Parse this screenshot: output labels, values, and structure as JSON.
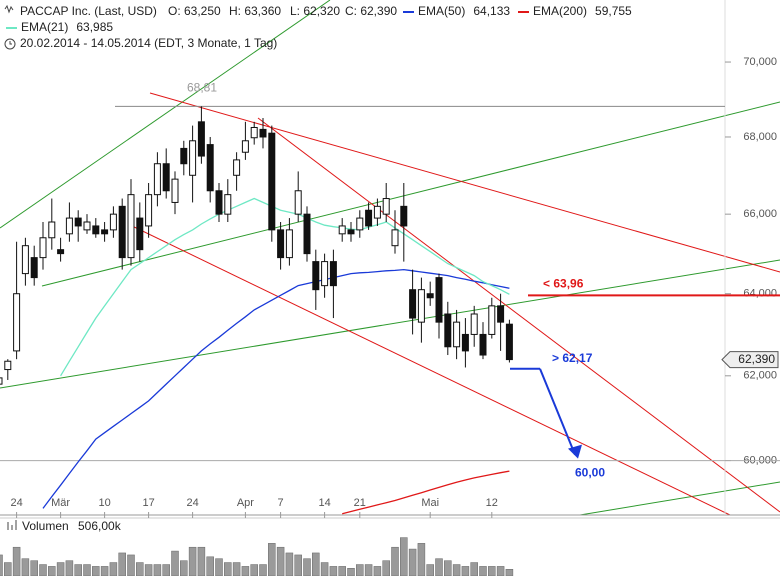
{
  "chart_data": {
    "type": "candlestick",
    "title": "PACCAP Inc. (Last, USD)",
    "ohlc_labels": [
      "O: 63,250",
      "H: 63,360",
      "L: 62,320",
      "C: 62,390"
    ],
    "subtitle": "20.02.2014 - 14.05.2014 (EDT, 3 Monate, 1 Tag)",
    "categories": [
      null,
      null,
      "24",
      null,
      null,
      null,
      null,
      "Mär",
      null,
      null,
      null,
      null,
      "10",
      null,
      null,
      null,
      null,
      "17",
      null,
      null,
      null,
      null,
      "24",
      null,
      null,
      null,
      null,
      null,
      "Apr",
      null,
      null,
      null,
      "7",
      null,
      null,
      null,
      null,
      "14",
      null,
      null,
      null,
      "21",
      null,
      null,
      null,
      null,
      null,
      null,
      null,
      "Mai",
      null,
      null,
      null,
      null,
      null,
      null,
      "12",
      null,
      null
    ],
    "open": [
      61.8,
      62.15,
      62.6,
      64.5,
      64.9,
      64.9,
      65.4,
      65.1,
      65.5,
      65.9,
      65.6,
      65.7,
      65.6,
      65.6,
      66.2,
      64.9,
      65.9,
      65.7,
      66.5,
      67.3,
      66.3,
      67.7,
      67.0,
      68.4,
      67.8,
      66.6,
      66.0,
      67.0,
      67.6,
      67.98,
      68.2,
      68.1,
      65.6,
      64.9,
      66.0,
      66.0,
      64.8,
      64.2,
      64.8,
      65.5,
      65.6,
      65.6,
      66.1,
      65.9,
      66.0,
      65.2,
      66.2,
      64.1,
      63.3,
      64.0,
      64.4,
      63.5,
      62.7,
      63.0,
      63.0,
      63.0,
      63.0,
      63.7,
      63.25
    ],
    "high": [
      62.1,
      62.4,
      65.3,
      65.4,
      65.2,
      65.8,
      66.4,
      65.4,
      66.3,
      66.1,
      66.0,
      65.9,
      65.8,
      66.2,
      66.4,
      66.9,
      66.3,
      66.8,
      67.6,
      67.7,
      67.1,
      67.9,
      68.3,
      68.81,
      68.0,
      66.8,
      66.9,
      67.6,
      68.4,
      68.4,
      68.5,
      68.3,
      65.8,
      65.9,
      67.1,
      66.2,
      65.1,
      65.0,
      65.1,
      65.9,
      65.8,
      66.1,
      66.3,
      66.4,
      66.8,
      66.1,
      66.8,
      64.6,
      64.4,
      64.3,
      64.5,
      63.8,
      63.6,
      63.4,
      63.7,
      63.3,
      63.9,
      64.0,
      63.36
    ],
    "low": [
      61.5,
      61.9,
      62.4,
      64.2,
      64.2,
      64.6,
      65.1,
      64.8,
      65.3,
      65.3,
      65.5,
      65.4,
      65.3,
      65.4,
      64.6,
      64.7,
      64.8,
      65.4,
      66.2,
      66.4,
      66.0,
      67.0,
      66.3,
      67.3,
      66.3,
      65.8,
      65.8,
      66.6,
      67.4,
      67.8,
      67.7,
      65.3,
      64.6,
      64.7,
      65.8,
      64.8,
      63.6,
      63.9,
      63.4,
      65.3,
      65.3,
      65.4,
      65.6,
      65.7,
      65.8,
      65.0,
      64.8,
      63.0,
      62.8,
      63.7,
      62.9,
      62.5,
      62.4,
      62.2,
      62.7,
      62.4,
      62.9,
      62.6,
      62.32
    ],
    "close": [
      61.95,
      62.35,
      64.0,
      65.2,
      64.4,
      65.4,
      65.8,
      65.0,
      65.9,
      65.7,
      65.8,
      65.5,
      65.5,
      66.0,
      64.9,
      66.5,
      65.1,
      66.5,
      67.3,
      66.6,
      66.9,
      67.3,
      67.9,
      67.5,
      66.6,
      66.0,
      66.5,
      67.4,
      67.9,
      68.25,
      68.0,
      65.6,
      64.9,
      65.6,
      66.6,
      65.0,
      64.1,
      64.8,
      64.2,
      65.7,
      65.5,
      65.9,
      65.7,
      66.2,
      66.4,
      65.6,
      65.7,
      63.4,
      64.1,
      63.9,
      63.3,
      62.7,
      63.3,
      62.6,
      63.5,
      62.5,
      63.7,
      63.3,
      62.39
    ],
    "series": [
      {
        "name": "EMA(50)",
        "color": "#1a3ad8",
        "last_label": "64,133",
        "values": [
          null,
          null,
          null,
          null,
          null,
          58.9,
          59.17,
          59.43,
          59.7,
          59.97,
          60.23,
          60.5,
          60.65,
          60.8,
          60.95,
          61.1,
          61.25,
          61.4,
          61.6,
          61.8,
          62.0,
          62.2,
          62.4,
          62.6,
          62.77,
          62.93,
          63.1,
          63.27,
          63.43,
          63.6,
          63.72,
          63.84,
          63.96,
          64.08,
          64.2,
          64.25,
          64.3,
          64.35,
          64.4,
          64.45,
          64.5,
          64.52,
          64.53,
          64.55,
          64.57,
          64.58,
          64.6,
          64.57,
          64.54,
          64.51,
          64.48,
          64.45,
          64.4,
          64.36,
          64.31,
          64.27,
          64.22,
          64.18,
          64.133
        ]
      },
      {
        "name": "EMA(200)",
        "color": "#e01818",
        "last_label": "59,755",
        "values": [
          null,
          null,
          null,
          null,
          null,
          null,
          null,
          null,
          null,
          null,
          null,
          null,
          null,
          null,
          null,
          null,
          null,
          null,
          null,
          null,
          null,
          null,
          null,
          null,
          null,
          null,
          null,
          null,
          null,
          null,
          null,
          null,
          null,
          null,
          null,
          null,
          null,
          null,
          null,
          58.78,
          58.83,
          58.88,
          58.93,
          58.98,
          59.03,
          59.08,
          59.14,
          59.2,
          59.26,
          59.32,
          59.38,
          59.44,
          59.5,
          59.55,
          59.6,
          59.64,
          59.68,
          59.72,
          59.755
        ]
      },
      {
        "name": "EMA(21)",
        "color": "#6ee8c4",
        "last_label": "63,985",
        "values": [
          null,
          null,
          null,
          null,
          null,
          null,
          null,
          62.0,
          62.35,
          62.7,
          63.05,
          63.4,
          63.7,
          64.0,
          64.3,
          64.6,
          64.75,
          64.9,
          65.05,
          65.2,
          65.35,
          65.48,
          65.6,
          65.75,
          65.88,
          66.0,
          66.1,
          66.2,
          66.3,
          66.4,
          66.3,
          66.2,
          66.1,
          66.05,
          66.0,
          65.9,
          65.8,
          65.72,
          65.68,
          65.65,
          65.62,
          65.6,
          65.67,
          65.73,
          65.8,
          65.65,
          65.5,
          65.35,
          65.2,
          65.05,
          64.9,
          64.75,
          64.65,
          64.55,
          64.45,
          64.3,
          64.2,
          64.1,
          63.985
        ]
      }
    ],
    "ylim": [
      58.75,
      71.7
    ],
    "log_scale": true,
    "yticks": [
      {
        "value": 60,
        "label": "60,000"
      },
      {
        "value": 62,
        "label": "62,000"
      },
      {
        "value": 64,
        "label": "64,000"
      },
      {
        "value": 66,
        "label": "66,000"
      },
      {
        "value": 68,
        "label": "68,000"
      },
      {
        "value": 70,
        "label": "70,000"
      }
    ],
    "last_price": {
      "value": 62.39,
      "label": "62,390"
    },
    "annotations": [
      {
        "value": 68.81,
        "label": "68,81",
        "color": "#999999"
      },
      {
        "value": 63.96,
        "label": "< 63,96",
        "color": "#e01818"
      },
      {
        "value": 62.17,
        "label": "> 62,17",
        "color": "#1a3ad8"
      },
      {
        "value": 60.0,
        "label": "60,00",
        "color": "#1a3ad8"
      }
    ],
    "volume": {
      "name": "Volumen",
      "color": "#9a9a9a",
      "ylim": [
        0,
        3300
      ],
      "values": [
        1580,
        1010,
        2160,
        1300,
        1150,
        860,
        720,
        1010,
        1150,
        860,
        860,
        720,
        720,
        1010,
        1730,
        1580,
        1010,
        860,
        860,
        860,
        1870,
        1150,
        2160,
        2160,
        1440,
        1300,
        1010,
        1010,
        720,
        860,
        860,
        2450,
        2160,
        1730,
        1580,
        1300,
        1730,
        1010,
        720,
        720,
        580,
        860,
        860,
        720,
        1150,
        2160,
        2880,
        2020,
        2450,
        860,
        1300,
        1150,
        860,
        720,
        1010,
        720,
        720,
        720,
        506
      ],
      "value_labels": [
        null,
        null,
        null,
        null,
        null,
        null,
        null,
        null,
        null,
        null,
        null,
        null,
        null,
        null,
        null,
        null,
        null,
        null,
        null,
        null,
        null,
        null,
        null,
        null,
        null,
        null,
        null,
        null,
        null,
        null,
        null,
        null,
        null,
        null,
        null,
        null,
        null,
        null,
        null,
        null,
        null,
        null,
        null,
        null,
        null,
        null,
        null,
        null,
        null,
        null,
        null,
        null,
        null,
        null,
        null,
        null,
        null,
        null,
        "506,00k"
      ]
    }
  }
}
